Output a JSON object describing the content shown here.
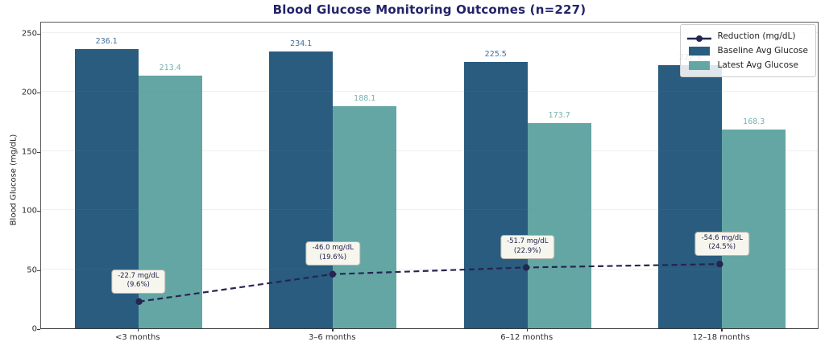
{
  "chart_data": {
    "type": "bar",
    "title": "Blood Glucose Monitoring Outcomes (n=227)",
    "ylabel": "Blood Glucose (mg/dL)",
    "categories": [
      "<3 months",
      "3–6 months",
      "6–12 months",
      "12–18 months"
    ],
    "series": [
      {
        "name": "Baseline Avg Glucose",
        "values": [
          236.1,
          234.1,
          225.5,
          222.9
        ],
        "color": "#295c7f",
        "label_color": "#3f6f9c"
      },
      {
        "name": "Latest Avg Glucose",
        "values": [
          213.4,
          188.1,
          173.7,
          168.3
        ],
        "color": "#64a6a4",
        "label_color": "#73b1af"
      }
    ],
    "line_series": {
      "name": "Reduction (mg/dL)",
      "values": [
        22.7,
        46.0,
        51.7,
        54.6
      ],
      "color": "#262550",
      "style": "dashed"
    },
    "annotations": [
      {
        "line1": "-22.7 mg/dL",
        "line2": "(9.6%)"
      },
      {
        "line1": "-46.0 mg/dL",
        "line2": "(19.6%)"
      },
      {
        "line1": "-51.7 mg/dL",
        "line2": "(22.9%)"
      },
      {
        "line1": "-54.6 mg/dL",
        "line2": "(24.5%)"
      }
    ],
    "yticks": [
      0,
      50,
      100,
      150,
      200,
      250
    ],
    "ylim": [
      0,
      260
    ],
    "grid": "horizontal",
    "legend_position": "upper-right",
    "legend_entries": [
      "Reduction (mg/dL)",
      "Baseline Avg Glucose",
      "Latest Avg Glucose"
    ]
  }
}
